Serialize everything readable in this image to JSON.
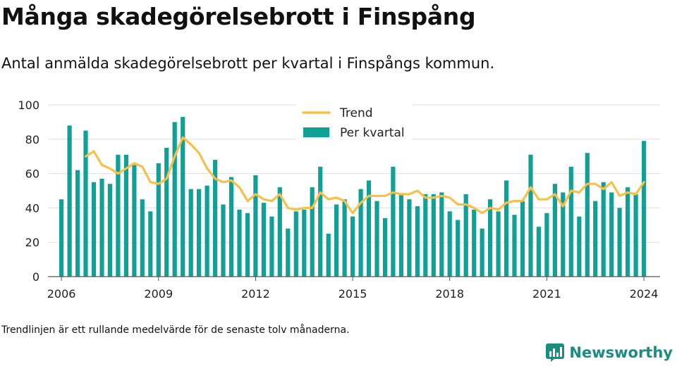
{
  "title": "Många skadegörelsebrott i Finspång",
  "subtitle": "Antal anmälda skadegörelsebrott per kvartal i Finspångs kommun.",
  "footnote": "Trendlinjen är ett rullande medelvärde för de senaste tolv månaderna.",
  "brand": {
    "name": "Newsworthy",
    "icon": "newsworthy-logo-icon",
    "color": "#1b8c7e"
  },
  "colors": {
    "bar": "#11a097",
    "trend": "#f6c04a",
    "grid": "#dddddd",
    "axis": "#555555"
  },
  "chart_data": {
    "type": "bar",
    "grid": true,
    "legend_position": "top",
    "legend": [
      {
        "label": "Trend",
        "kind": "line",
        "color": "#f6c04a"
      },
      {
        "label": "Per kvartal",
        "kind": "bar",
        "color": "#11a097"
      }
    ],
    "ylim": [
      0,
      100
    ],
    "yticks": [
      0,
      20,
      40,
      60,
      80,
      100
    ],
    "xlim": [
      "2005-08",
      "2024-07"
    ],
    "xticks": [
      "2006",
      "2009",
      "2012",
      "2015",
      "2018",
      "2021",
      "2024"
    ],
    "categories": [
      "2006-01",
      "2006-04",
      "2006-07",
      "2006-10",
      "2007-01",
      "2007-04",
      "2007-07",
      "2007-10",
      "2008-01",
      "2008-04",
      "2008-07",
      "2008-10",
      "2009-01",
      "2009-04",
      "2009-07",
      "2009-10",
      "2010-01",
      "2010-04",
      "2010-07",
      "2010-10",
      "2011-01",
      "2011-04",
      "2011-07",
      "2011-10",
      "2012-01",
      "2012-04",
      "2012-07",
      "2012-10",
      "2013-01",
      "2013-04",
      "2013-07",
      "2013-10",
      "2014-01",
      "2014-04",
      "2014-07",
      "2014-10",
      "2015-01",
      "2015-04",
      "2015-07",
      "2015-10",
      "2016-01",
      "2016-04",
      "2016-07",
      "2016-10",
      "2017-01",
      "2017-04",
      "2017-07",
      "2017-10",
      "2018-01",
      "2018-04",
      "2018-07",
      "2018-10",
      "2019-01",
      "2019-04",
      "2019-07",
      "2019-10",
      "2020-01",
      "2020-04",
      "2020-07",
      "2020-10",
      "2021-01",
      "2021-04",
      "2021-07",
      "2021-10",
      "2022-01",
      "2022-04",
      "2022-07",
      "2022-10",
      "2023-01",
      "2023-04",
      "2023-07",
      "2023-10",
      "2024-01"
    ],
    "series": [
      {
        "name": "Per kvartal",
        "values": [
          45,
          88,
          62,
          85,
          55,
          57,
          54,
          71,
          71,
          65,
          45,
          38,
          66,
          75,
          90,
          93,
          51,
          51,
          53,
          68,
          42,
          58,
          39,
          37,
          59,
          43,
          35,
          52,
          28,
          38,
          39,
          52,
          64,
          25,
          42,
          45,
          35,
          51,
          56,
          44,
          34,
          64,
          48,
          45,
          41,
          48,
          48,
          49,
          38,
          33,
          48,
          39,
          28,
          45,
          38,
          56,
          36,
          44,
          71,
          29,
          37,
          54,
          49,
          64,
          35,
          72,
          44,
          55,
          49,
          40,
          52,
          48,
          79
        ]
      },
      {
        "name": "Trend",
        "x": [
          "2006-10",
          "2007-01",
          "2007-04",
          "2007-07",
          "2007-10",
          "2008-01",
          "2008-04",
          "2008-07",
          "2008-10",
          "2009-01",
          "2009-04",
          "2009-07",
          "2009-10",
          "2010-01",
          "2010-04",
          "2010-07",
          "2010-10",
          "2011-01",
          "2011-04",
          "2011-07",
          "2011-10",
          "2012-01",
          "2012-04",
          "2012-07",
          "2012-10",
          "2013-01",
          "2013-04",
          "2013-07",
          "2013-10",
          "2014-01",
          "2014-04",
          "2014-07",
          "2014-10",
          "2015-01",
          "2015-04",
          "2015-07",
          "2015-10",
          "2016-01",
          "2016-04",
          "2016-07",
          "2016-10",
          "2017-01",
          "2017-04",
          "2017-07",
          "2017-10",
          "2018-01",
          "2018-04",
          "2018-07",
          "2018-10",
          "2019-01",
          "2019-04",
          "2019-07",
          "2019-10",
          "2020-01",
          "2020-04",
          "2020-07",
          "2020-10",
          "2021-01",
          "2021-04",
          "2021-07",
          "2021-10",
          "2022-01",
          "2022-04",
          "2022-07",
          "2022-10",
          "2023-01",
          "2023-04",
          "2023-07",
          "2023-10",
          "2024-01"
        ],
        "values": [
          70,
          73,
          65,
          63,
          60,
          63,
          66,
          64,
          55,
          54,
          57,
          70,
          81,
          77,
          72,
          63,
          57,
          55,
          56,
          52,
          44,
          48,
          45,
          44,
          48,
          40,
          39,
          40,
          40,
          49,
          45,
          46,
          44,
          37,
          43,
          47,
          47,
          47,
          49,
          48,
          48,
          50,
          46,
          46,
          47,
          46,
          42,
          42,
          40,
          37,
          40,
          39,
          43,
          44,
          44,
          52,
          45,
          45,
          48,
          41,
          50,
          49,
          54,
          54,
          51,
          55,
          47,
          49,
          48,
          55
        ]
      }
    ]
  }
}
